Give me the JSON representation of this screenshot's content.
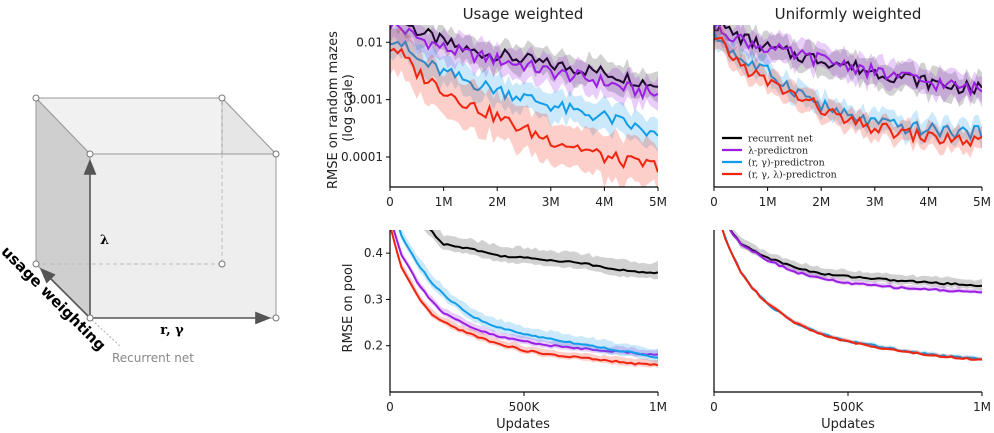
{
  "cube": {
    "vertical_label": "λ",
    "horizontal_label": "r, γ",
    "diagonal_label": "usage weighting",
    "origin_note": "Recurrent net"
  },
  "colors": {
    "recurrent": "#000000",
    "lambda": "#9b1ee3",
    "rg": "#119dea",
    "rgl": "#f0250f",
    "face": "#ececec",
    "face_dark": "#cfcfcf"
  },
  "legend": [
    {
      "key": "recurrent",
      "label": "recurrent net"
    },
    {
      "key": "lambda",
      "label": "λ-predictron"
    },
    {
      "key": "rg",
      "label": "(r, γ)-predictron"
    },
    {
      "key": "rgl",
      "label": "(r, γ, λ)-predictron"
    }
  ],
  "chart_data": [
    {
      "type": "line",
      "title": "Usage weighted",
      "ylabel": "RMSE on random mazes\n(log scale)",
      "xlabel": "",
      "yscale": "log",
      "xlim": [
        0,
        5
      ],
      "ylim": [
        3e-05,
        0.02
      ],
      "xticks": [
        0,
        1,
        2,
        3,
        4,
        5
      ],
      "xticklabels": [
        "0",
        "1M",
        "2M",
        "3M",
        "4M",
        "5M"
      ],
      "yticks": [
        0.0001,
        0.001,
        0.01
      ],
      "yticklabels": [
        "0.0001",
        "0.001",
        "0.01"
      ],
      "series": [
        {
          "key": "recurrent",
          "x": [
            0.1,
            0.5,
            1.0,
            1.5,
            2.0,
            2.5,
            3.0,
            3.5,
            4.0,
            4.5,
            5.0
          ],
          "y": [
            0.03,
            0.016,
            0.01,
            0.007,
            0.006,
            0.005,
            0.004,
            0.0035,
            0.003,
            0.0023,
            0.0018
          ],
          "band": 0.55
        },
        {
          "key": "lambda",
          "x": [
            0.1,
            0.5,
            1.0,
            1.5,
            2.0,
            2.5,
            3.0,
            3.5,
            4.0,
            4.5,
            5.0
          ],
          "y": [
            0.02,
            0.012,
            0.008,
            0.006,
            0.005,
            0.004,
            0.003,
            0.0025,
            0.002,
            0.0015,
            0.0012
          ],
          "band": 0.6
        },
        {
          "key": "rg",
          "x": [
            0.1,
            0.5,
            1.0,
            1.5,
            2.0,
            2.5,
            3.0,
            3.5,
            4.0,
            4.5,
            5.0
          ],
          "y": [
            0.012,
            0.005,
            0.003,
            0.002,
            0.0015,
            0.0011,
            0.0008,
            0.0006,
            0.0005,
            0.00035,
            0.00022
          ],
          "band": 0.6
        },
        {
          "key": "rgl",
          "x": [
            0.1,
            0.5,
            1.0,
            1.5,
            2.0,
            2.5,
            3.0,
            3.5,
            4.0,
            4.5,
            5.0
          ],
          "y": [
            0.008,
            0.003,
            0.0015,
            0.0008,
            0.0005,
            0.0003,
            0.0002,
            0.00015,
            0.0001,
            8e-05,
            7e-05
          ],
          "band": 0.9
        }
      ]
    },
    {
      "type": "line",
      "title": "Uniformly weighted",
      "ylabel": "",
      "xlabel": "",
      "yscale": "log",
      "xlim": [
        0,
        5
      ],
      "ylim": [
        3e-05,
        0.02
      ],
      "xticks": [
        0,
        1,
        2,
        3,
        4,
        5
      ],
      "xticklabels": [
        "0",
        "1M",
        "2M",
        "3M",
        "4M",
        "5M"
      ],
      "yticks": [],
      "yticklabels": [],
      "legend_position": "bottom-left",
      "series": [
        {
          "key": "recurrent",
          "x": [
            0.1,
            0.5,
            1.0,
            1.5,
            2.0,
            2.5,
            3.0,
            3.5,
            4.0,
            4.5,
            5.0
          ],
          "y": [
            0.02,
            0.012,
            0.008,
            0.006,
            0.005,
            0.004,
            0.003,
            0.0025,
            0.002,
            0.0017,
            0.0015
          ],
          "band": 0.55
        },
        {
          "key": "lambda",
          "x": [
            0.1,
            0.5,
            1.0,
            1.5,
            2.0,
            2.5,
            3.0,
            3.5,
            4.0,
            4.5,
            5.0
          ],
          "y": [
            0.018,
            0.011,
            0.008,
            0.006,
            0.005,
            0.004,
            0.003,
            0.0025,
            0.002,
            0.0017,
            0.0015
          ],
          "band": 0.55
        },
        {
          "key": "rg",
          "x": [
            0.1,
            0.5,
            1.0,
            1.5,
            2.0,
            2.5,
            3.0,
            3.5,
            4.0,
            4.5,
            5.0
          ],
          "y": [
            0.012,
            0.005,
            0.003,
            0.0015,
            0.0008,
            0.0005,
            0.0004,
            0.00033,
            0.0003,
            0.00028,
            0.00026
          ],
          "band": 0.45
        },
        {
          "key": "rgl",
          "x": [
            0.1,
            0.5,
            1.0,
            1.5,
            2.0,
            2.5,
            3.0,
            3.5,
            4.0,
            4.5,
            5.0
          ],
          "y": [
            0.01,
            0.004,
            0.002,
            0.0012,
            0.0007,
            0.0004,
            0.00032,
            0.00026,
            0.00022,
            0.0002,
            0.00018
          ],
          "band": 0.45
        }
      ]
    },
    {
      "type": "line",
      "title": "",
      "ylabel": "RMSE on pool",
      "xlabel": "Updates",
      "yscale": "linear",
      "xlim": [
        0,
        1000
      ],
      "ylim": [
        0.1,
        0.45
      ],
      "xticks": [
        0,
        500,
        1000
      ],
      "xticklabels": [
        "0",
        "500K",
        "1M"
      ],
      "yticks": [
        0.2,
        0.3,
        0.4
      ],
      "yticklabels": [
        "0.2",
        "0.3",
        "0.4"
      ],
      "series": [
        {
          "key": "recurrent",
          "x": [
            0,
            100,
            150,
            200,
            300,
            400,
            500,
            600,
            700,
            800,
            900,
            1000
          ],
          "y": [
            0.55,
            0.48,
            0.45,
            0.42,
            0.41,
            0.395,
            0.39,
            0.385,
            0.38,
            0.37,
            0.36,
            0.358
          ],
          "band": 0.025
        },
        {
          "key": "lambda",
          "x": [
            0,
            40,
            100,
            150,
            200,
            300,
            400,
            500,
            600,
            700,
            800,
            900,
            1000
          ],
          "y": [
            0.48,
            0.4,
            0.34,
            0.3,
            0.27,
            0.24,
            0.22,
            0.21,
            0.2,
            0.195,
            0.19,
            0.185,
            0.18
          ],
          "band": 0.012
        },
        {
          "key": "rg",
          "x": [
            0,
            40,
            100,
            150,
            200,
            300,
            400,
            500,
            600,
            700,
            800,
            900,
            1000
          ],
          "y": [
            0.52,
            0.44,
            0.38,
            0.34,
            0.31,
            0.265,
            0.24,
            0.225,
            0.215,
            0.205,
            0.195,
            0.185,
            0.175
          ],
          "band": 0.02
        },
        {
          "key": "rgl",
          "x": [
            0,
            40,
            100,
            150,
            200,
            300,
            400,
            500,
            600,
            700,
            800,
            900,
            1000
          ],
          "y": [
            0.46,
            0.37,
            0.31,
            0.27,
            0.25,
            0.225,
            0.205,
            0.19,
            0.18,
            0.175,
            0.168,
            0.162,
            0.158
          ],
          "band": 0.012
        }
      ]
    },
    {
      "type": "line",
      "title": "",
      "ylabel": "",
      "xlabel": "Updates",
      "yscale": "linear",
      "xlim": [
        0,
        1000
      ],
      "ylim": [
        0.1,
        0.45
      ],
      "xticks": [
        0,
        500,
        1000
      ],
      "xticklabels": [
        "0",
        "500K",
        "1M"
      ],
      "yticks": [],
      "yticklabels": [],
      "series": [
        {
          "key": "recurrent",
          "x": [
            0,
            60,
            100,
            200,
            300,
            400,
            500,
            600,
            700,
            800,
            900,
            1000
          ],
          "y": [
            0.55,
            0.45,
            0.42,
            0.39,
            0.37,
            0.355,
            0.35,
            0.345,
            0.34,
            0.337,
            0.333,
            0.33
          ],
          "band": 0.015
        },
        {
          "key": "lambda",
          "x": [
            0,
            60,
            100,
            200,
            300,
            400,
            500,
            600,
            700,
            800,
            900,
            1000
          ],
          "y": [
            0.55,
            0.45,
            0.42,
            0.385,
            0.36,
            0.345,
            0.335,
            0.33,
            0.325,
            0.322,
            0.318,
            0.316
          ],
          "band": 0.008
        },
        {
          "key": "rg",
          "x": [
            0,
            50,
            100,
            150,
            200,
            300,
            400,
            500,
            600,
            700,
            800,
            900,
            1000
          ],
          "y": [
            0.5,
            0.42,
            0.36,
            0.32,
            0.29,
            0.25,
            0.225,
            0.21,
            0.2,
            0.19,
            0.182,
            0.175,
            0.172
          ],
          "band": 0.006
        },
        {
          "key": "rgl",
          "x": [
            0,
            50,
            100,
            150,
            200,
            300,
            400,
            500,
            600,
            700,
            800,
            900,
            1000
          ],
          "y": [
            0.5,
            0.42,
            0.36,
            0.32,
            0.29,
            0.25,
            0.225,
            0.208,
            0.198,
            0.188,
            0.18,
            0.174,
            0.17
          ],
          "band": 0.006
        }
      ]
    }
  ]
}
